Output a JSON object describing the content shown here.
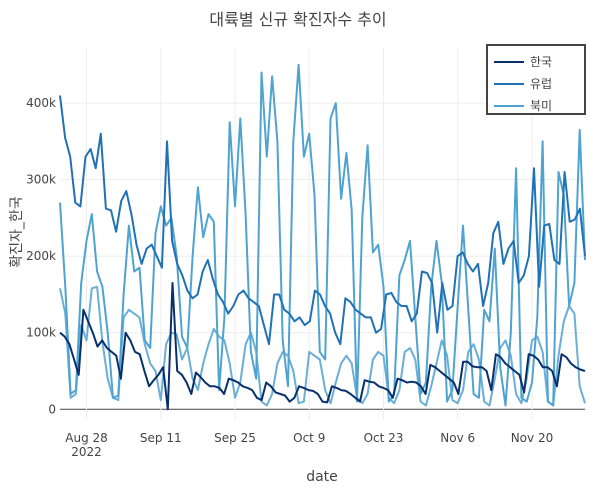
{
  "chart_data": {
    "type": "line",
    "title": "대륙별 신규 확진자수 추이",
    "xlabel": "date",
    "ylabel": "확진자_한국",
    "x_start": "2022-08-23",
    "x_end": "2022-11-30",
    "x_ticks": [
      {
        "date": "2022-08-28",
        "label": "Aug 28",
        "sublabel": "2022"
      },
      {
        "date": "2022-09-11",
        "label": "Sep 11",
        "sublabel": ""
      },
      {
        "date": "2022-09-25",
        "label": "Sep 25",
        "sublabel": ""
      },
      {
        "date": "2022-10-09",
        "label": "Oct 9",
        "sublabel": ""
      },
      {
        "date": "2022-10-23",
        "label": "Oct 23",
        "sublabel": ""
      },
      {
        "date": "2022-11-06",
        "label": "Nov 6",
        "sublabel": ""
      },
      {
        "date": "2022-11-20",
        "label": "Nov 20",
        "sublabel": ""
      }
    ],
    "y_ticks": [
      {
        "value": 0,
        "label": "0"
      },
      {
        "value": 100000,
        "label": "100k"
      },
      {
        "value": 200000,
        "label": "200k"
      },
      {
        "value": 300000,
        "label": "300k"
      },
      {
        "value": 400000,
        "label": "400k"
      }
    ],
    "ylim": [
      -14000,
      472000
    ],
    "grid": true,
    "legend_position": "top-right",
    "series": [
      {
        "name": "한국",
        "color": "#08306b",
        "values": [
          100000,
          95000,
          85000,
          65000,
          45000,
          130000,
          115000,
          100000,
          82000,
          90000,
          80000,
          75000,
          70000,
          40000,
          100000,
          90000,
          75000,
          72000,
          50000,
          30000,
          38000,
          45000,
          55000,
          0,
          165000,
          50000,
          45000,
          35000,
          20000,
          48000,
          42000,
          35000,
          30000,
          30000,
          28000,
          20000,
          40000,
          38000,
          35000,
          30000,
          28000,
          25000,
          15000,
          12000,
          35000,
          30000,
          22000,
          20000,
          18000,
          10000,
          15000,
          30000,
          28000,
          25000,
          24000,
          20000,
          10000,
          9000,
          30000,
          28000,
          25000,
          24000,
          20000,
          15000,
          10000,
          38000,
          36000,
          35000,
          30000,
          28000,
          25000,
          15000,
          40000,
          38000,
          35000,
          36000,
          35000,
          30000,
          20000,
          58000,
          55000,
          50000,
          45000,
          40000,
          35000,
          20000,
          62000,
          62000,
          56000,
          55000,
          55000,
          50000,
          25000,
          72000,
          68000,
          60000,
          55000,
          50000,
          45000,
          22000,
          72000,
          70000,
          65000,
          55000,
          55000,
          50000,
          30000,
          72000,
          68000,
          60000,
          55000,
          52000,
          50000
        ]
      },
      {
        "name": "유럽",
        "color": "#2171b5",
        "values": [
          410000,
          355000,
          330000,
          270000,
          265000,
          330000,
          340000,
          315000,
          360000,
          262000,
          260000,
          232000,
          272000,
          285000,
          255000,
          215000,
          190000,
          210000,
          215000,
          200000,
          185000,
          350000,
          220000,
          190000,
          175000,
          155000,
          145000,
          150000,
          180000,
          195000,
          170000,
          150000,
          140000,
          125000,
          135000,
          150000,
          155000,
          145000,
          140000,
          135000,
          110000,
          85000,
          150000,
          150000,
          130000,
          125000,
          115000,
          120000,
          110000,
          115000,
          155000,
          150000,
          135000,
          125000,
          100000,
          85000,
          145000,
          140000,
          130000,
          125000,
          120000,
          120000,
          100000,
          105000,
          150000,
          152000,
          140000,
          135000,
          135000,
          115000,
          125000,
          180000,
          178000,
          165000,
          100000,
          165000,
          130000,
          135000,
          200000,
          205000,
          190000,
          180000,
          190000,
          135000,
          165000,
          230000,
          245000,
          190000,
          210000,
          220000,
          165000,
          175000,
          200000,
          315000,
          160000,
          240000,
          242000,
          195000,
          190000,
          310000,
          245000,
          248000,
          262000,
          200000
        ]
      },
      {
        "name": "북미",
        "color": "#4fa3d1",
        "values": [
          270000,
          160000,
          20000,
          25000,
          165000,
          220000,
          255000,
          180000,
          160000,
          100000,
          15000,
          18000,
          150000,
          240000,
          180000,
          185000,
          90000,
          80000,
          230000,
          265000,
          240000,
          250000,
          200000,
          95000,
          80000,
          200000,
          290000,
          225000,
          255000,
          245000,
          25000,
          120000,
          375000,
          265000,
          380000,
          255000,
          75000,
          40000,
          440000,
          330000,
          435000,
          350000,
          90000,
          30000,
          350000,
          450000,
          330000,
          360000,
          280000,
          75000,
          65000,
          380000,
          400000,
          275000,
          335000,
          260000,
          10000,
          250000,
          345000,
          205000,
          215000,
          160000,
          10000,
          20000,
          175000,
          195000,
          220000,
          120000,
          20000,
          35000,
          160000,
          220000,
          165000,
          10000,
          25000,
          135000,
          240000,
          130000,
          20000,
          15000,
          130000,
          115000,
          210000,
          55000,
          5000,
          100000,
          315000,
          15000,
          10000,
          35000,
          120000,
          350000,
          10000,
          5000,
          310000,
          280000,
          135000,
          165000,
          365000,
          195000
        ]
      },
      {
        "name": "",
        "color": "#6baed6",
        "values": [
          158000,
          125000,
          15000,
          20000,
          110000,
          90000,
          158000,
          160000,
          88000,
          40000,
          15000,
          12000,
          120000,
          130000,
          125000,
          120000,
          85000,
          60000,
          50000,
          12000,
          85000,
          100000,
          98000,
          65000,
          80000,
          40000,
          25000,
          60000,
          85000,
          105000,
          95000,
          90000,
          60000,
          15000,
          35000,
          85000,
          100000,
          75000,
          10000,
          5000,
          20000,
          60000,
          75000,
          70000,
          50000,
          8000,
          10000,
          75000,
          70000,
          65000,
          25000,
          8000,
          35000,
          60000,
          70000,
          60000,
          15000,
          8000,
          20000,
          65000,
          75000,
          70000,
          15000,
          8000,
          25000,
          75000,
          80000,
          65000,
          10000,
          5000,
          30000,
          60000,
          90000,
          70000,
          12000,
          8000,
          25000,
          75000,
          85000,
          65000,
          10000,
          5000,
          40000,
          80000,
          90000,
          70000,
          20000,
          8000,
          40000,
          90000,
          95000,
          75000,
          10000,
          5000,
          70000,
          115000,
          135000,
          125000,
          30000,
          8000
        ]
      }
    ]
  }
}
